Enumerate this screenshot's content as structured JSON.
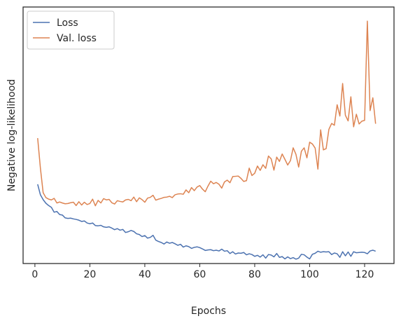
{
  "chart_data": {
    "type": "line",
    "xlabel": "Epochs",
    "ylabel": "Negative log-likelihood",
    "x": [
      1,
      2,
      3,
      4,
      5,
      6,
      7,
      8,
      9,
      10,
      11,
      12,
      13,
      14,
      15,
      16,
      17,
      18,
      19,
      20,
      21,
      22,
      23,
      24,
      25,
      26,
      27,
      28,
      29,
      30,
      31,
      32,
      33,
      34,
      35,
      36,
      37,
      38,
      39,
      40,
      41,
      42,
      43,
      44,
      45,
      46,
      47,
      48,
      49,
      50,
      51,
      52,
      53,
      54,
      55,
      56,
      57,
      58,
      59,
      60,
      61,
      62,
      63,
      64,
      65,
      66,
      67,
      68,
      69,
      70,
      71,
      72,
      73,
      74,
      75,
      76,
      77,
      78,
      79,
      80,
      81,
      82,
      83,
      84,
      85,
      86,
      87,
      88,
      89,
      90,
      91,
      92,
      93,
      94,
      95,
      96,
      97,
      98,
      99,
      100,
      101,
      102,
      103,
      104,
      105,
      106,
      107,
      108,
      109,
      110,
      111,
      112,
      113,
      114,
      115,
      116,
      117,
      118,
      119,
      120,
      121,
      122,
      123,
      124
    ],
    "series": [
      {
        "name": "Loss",
        "color": "#4c72b0",
        "values": [
          30.9,
          26.8,
          24.9,
          23.5,
          22.6,
          21.9,
          20.0,
          20.3,
          19.1,
          18.9,
          17.8,
          17.6,
          17.7,
          17.4,
          17.2,
          16.9,
          16.4,
          16.6,
          15.8,
          15.5,
          15.8,
          14.8,
          14.7,
          14.9,
          14.3,
          14.1,
          14.3,
          13.8,
          13.2,
          13.6,
          13.0,
          13.3,
          12.1,
          12.4,
          12.9,
          12.5,
          11.6,
          11.3,
          10.5,
          10.9,
          9.9,
          10.2,
          11.0,
          9.1,
          8.6,
          8.2,
          7.6,
          8.4,
          7.9,
          8.2,
          7.7,
          7.1,
          7.5,
          6.4,
          6.9,
          6.6,
          5.9,
          6.3,
          6.5,
          6.2,
          5.7,
          5.1,
          5.3,
          5.4,
          5.0,
          5.2,
          4.9,
          5.6,
          4.8,
          5.0,
          3.9,
          4.6,
          3.7,
          4.1,
          4.0,
          4.3,
          3.4,
          3.8,
          3.5,
          2.8,
          3.2,
          2.5,
          3.4,
          2.1,
          3.5,
          3.3,
          2.6,
          3.9,
          2.4,
          2.7,
          1.8,
          2.6,
          1.9,
          2.3,
          1.7,
          2.1,
          3.6,
          3.4,
          2.5,
          1.8,
          3.6,
          4.0,
          4.8,
          4.4,
          4.6,
          4.5,
          4.6,
          3.5,
          4.1,
          3.8,
          2.4,
          4.6,
          3.0,
          4.5,
          2.8,
          4.6,
          4.2,
          4.3,
          4.4,
          4.3,
          3.8,
          4.9,
          5.2,
          4.8
        ]
      },
      {
        "name": "Val. loss",
        "color": "#dd8452",
        "values": [
          48.9,
          37.2,
          27.6,
          25.7,
          25.1,
          24.8,
          25.4,
          23.6,
          24.0,
          23.6,
          23.3,
          23.4,
          23.7,
          23.9,
          22.6,
          24.1,
          22.8,
          23.9,
          23.0,
          23.4,
          25.1,
          22.5,
          24.6,
          23.6,
          25.3,
          24.8,
          25.0,
          23.7,
          23.2,
          24.5,
          24.2,
          24.0,
          24.8,
          25.0,
          24.5,
          25.9,
          24.1,
          25.6,
          24.9,
          23.9,
          25.5,
          25.8,
          26.6,
          24.7,
          25.1,
          25.4,
          25.8,
          25.9,
          26.2,
          25.7,
          26.8,
          27.1,
          27.2,
          27.0,
          28.7,
          27.6,
          29.6,
          28.4,
          29.8,
          30.4,
          29.0,
          28.0,
          30.2,
          32.1,
          31.1,
          31.6,
          30.9,
          29.4,
          31.8,
          32.5,
          31.5,
          33.9,
          34.0,
          34.1,
          33.2,
          32.0,
          32.3,
          37.2,
          34.3,
          35.2,
          38.0,
          36.3,
          38.5,
          37.1,
          41.9,
          40.8,
          36.4,
          41.5,
          39.8,
          42.7,
          40.6,
          38.4,
          40.1,
          45.1,
          42.6,
          37.6,
          43.8,
          45.1,
          41.2,
          47.3,
          46.6,
          45.0,
          36.8,
          52.1,
          44.3,
          44.8,
          52.3,
          54.6,
          53.9,
          61.9,
          57.5,
          70.2,
          57.8,
          55.6,
          65.0,
          53.3,
          58.2,
          54.4,
          55.5,
          55.8,
          94.5,
          59.6,
          64.6,
          54.5
        ]
      }
    ],
    "xlim": [
      -4.3,
      130.7
    ],
    "xticks": [
      0,
      20,
      40,
      60,
      80,
      100,
      120
    ],
    "ylim": [
      0,
      100
    ],
    "legend": "upper left"
  }
}
